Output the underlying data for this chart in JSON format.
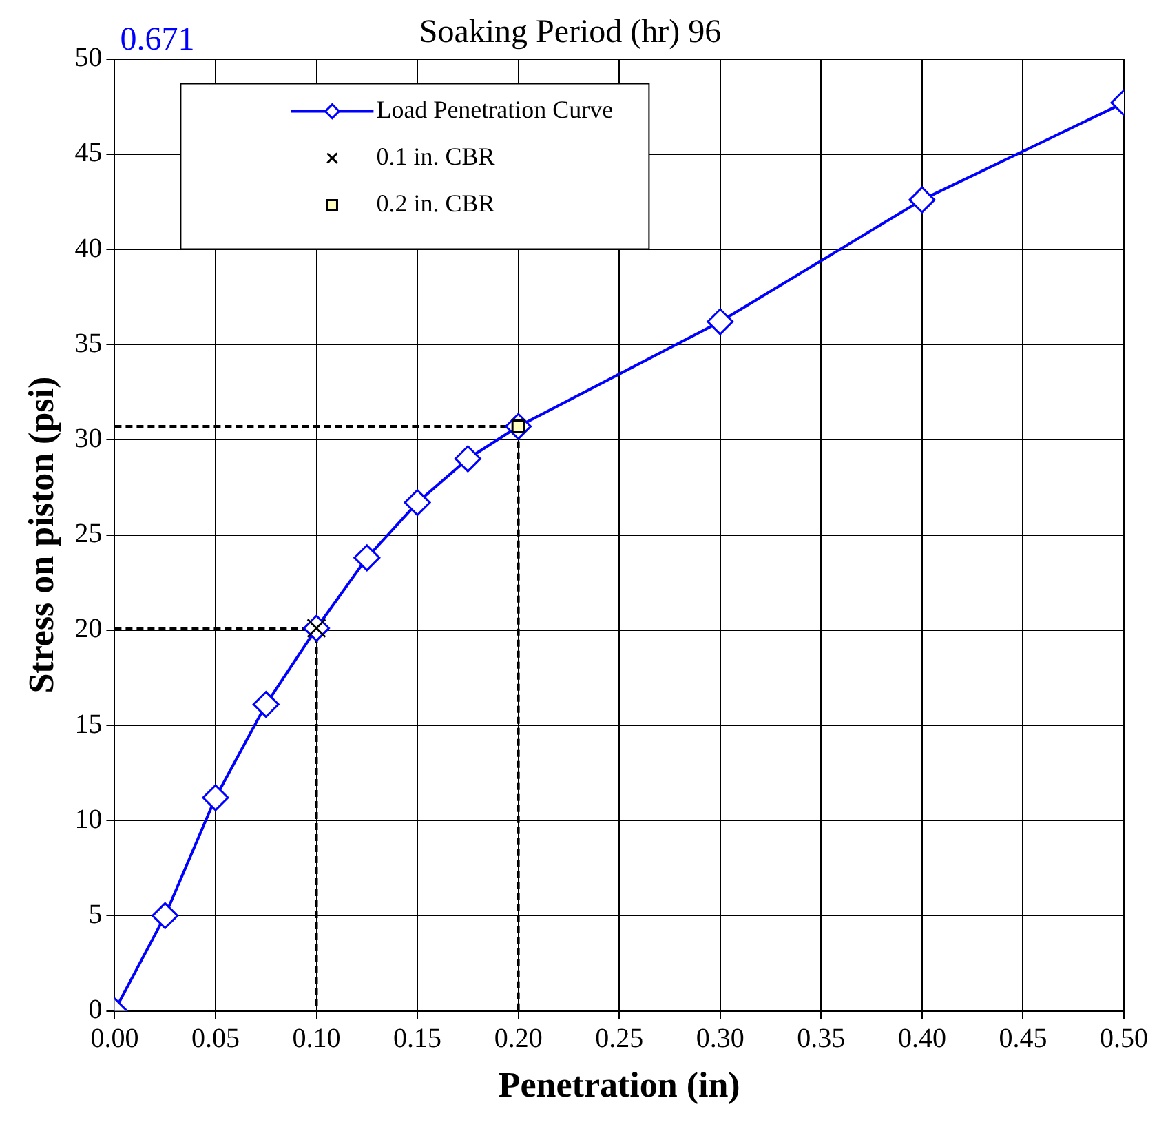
{
  "chart_data": {
    "type": "line",
    "title": "Soaking Period (hr) 96",
    "xlabel": "Penetration (in)",
    "ylabel": "Stress on piston (psi)",
    "annotations": [
      "0.671"
    ],
    "xlim": [
      0,
      0.5
    ],
    "xticks": [
      {
        "value": 0,
        "label": "0.00"
      },
      {
        "value": 0.05,
        "label": "0.05"
      },
      {
        "value": 0.1,
        "label": "0.10"
      },
      {
        "value": 0.15,
        "label": "0.15"
      },
      {
        "value": 0.2,
        "label": "0.20"
      },
      {
        "value": 0.25,
        "label": "0.25"
      },
      {
        "value": 0.3,
        "label": "0.30"
      },
      {
        "value": 0.35,
        "label": "0.35"
      },
      {
        "value": 0.4,
        "label": "0.40"
      },
      {
        "value": 0.45,
        "label": "0.45"
      },
      {
        "value": 0.5,
        "label": "0.50"
      }
    ],
    "ylim": [
      0,
      50
    ],
    "yticks": [
      0,
      5,
      10,
      15,
      20,
      25,
      30,
      35,
      40,
      45,
      50
    ],
    "grid": true,
    "legend": "top left",
    "series": [
      {
        "name": "Load Penetration Curve",
        "type": "line",
        "color": "#0000ff",
        "marker": "diamond",
        "line_style": "solid",
        "x": [
          0,
          0.025,
          0.05,
          0.075,
          0.1,
          0.125,
          0.15,
          0.175,
          0.2,
          0.3,
          0.4,
          0.5
        ],
        "values": [
          0,
          5.0,
          11.2,
          16.1,
          20.1,
          23.8,
          26.7,
          29.0,
          30.7,
          36.2,
          42.6,
          47.7
        ]
      },
      {
        "name": "0.1 in. CBR",
        "type": "scatter",
        "color": "#000000",
        "marker": "cross",
        "x": [
          0.1
        ],
        "values": [
          20.1
        ]
      },
      {
        "name": "0.2 in. CBR",
        "type": "scatter",
        "color": "#ffffc0",
        "marker": "square",
        "x": [
          0.2
        ],
        "values": [
          30.7
        ]
      },
      {
        "type": "line",
        "color": "#000000",
        "line_style": "dashed",
        "marker": "none",
        "x": [
          0,
          0.1,
          0.1
        ],
        "values": [
          20.1,
          20.1,
          0
        ]
      },
      {
        "type": "line",
        "color": "#000000",
        "line_style": "dashed",
        "marker": "none",
        "x": [
          0,
          0.2,
          0.2
        ],
        "values": [
          30.7,
          30.7,
          0
        ]
      }
    ]
  }
}
